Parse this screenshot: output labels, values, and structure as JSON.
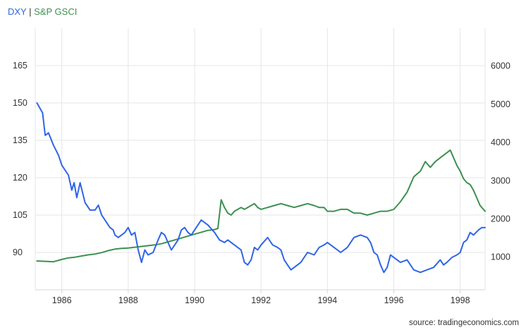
{
  "legend": {
    "separator": "|"
  },
  "source": "source: tradingeconomics.com",
  "colors": {
    "dxy": "#2f65e6",
    "gsci": "#3d9050",
    "grid": "#e6e6e6",
    "axis": "#d6d6d6",
    "text": "#333333"
  },
  "chart_data": {
    "type": "line",
    "x_axis": {
      "range": [
        1985.2,
        1998.75
      ],
      "ticks": [
        1986,
        1988,
        1990,
        1992,
        1994,
        1996,
        1998
      ],
      "tick_labels": [
        "1986",
        "1988",
        "1990",
        "1992",
        "1994",
        "1996",
        "1998"
      ],
      "grid": true
    },
    "y_left": {
      "range": [
        75,
        180
      ],
      "ticks": [
        90,
        105,
        120,
        135,
        150,
        165
      ],
      "tick_labels": [
        "90",
        "105",
        "120",
        "135",
        "150",
        "165"
      ],
      "grid": true
    },
    "y_right": {
      "range": [
        145,
        6990
      ],
      "ticks": [
        1000,
        2000,
        3000,
        4000,
        5000,
        6000
      ],
      "tick_labels": [
        "1000",
        "2000",
        "3000",
        "4000",
        "5000",
        "6000"
      ]
    },
    "legend_position": "top-left",
    "series": [
      {
        "name": "DXY",
        "axis": "left",
        "color": "#2f65e6",
        "x": [
          1985.25,
          1985.42,
          1985.5,
          1985.6,
          1985.75,
          1985.9,
          1986.0,
          1986.1,
          1986.2,
          1986.3,
          1986.37,
          1986.45,
          1986.55,
          1986.7,
          1986.85,
          1987.0,
          1987.1,
          1987.2,
          1987.35,
          1987.45,
          1987.55,
          1987.6,
          1987.7,
          1987.8,
          1987.9,
          1988.0,
          1988.1,
          1988.2,
          1988.3,
          1988.4,
          1988.5,
          1988.6,
          1988.75,
          1988.9,
          1989.0,
          1989.1,
          1989.2,
          1989.3,
          1989.4,
          1989.5,
          1989.6,
          1989.7,
          1989.8,
          1989.9,
          1990.0,
          1990.2,
          1990.4,
          1990.6,
          1990.75,
          1990.9,
          1991.0,
          1991.1,
          1991.2,
          1991.3,
          1991.4,
          1991.5,
          1991.6,
          1991.7,
          1991.8,
          1991.9,
          1992.0,
          1992.2,
          1992.35,
          1992.5,
          1992.6,
          1992.7,
          1992.8,
          1992.9,
          1993.0,
          1993.2,
          1993.4,
          1993.6,
          1993.75,
          1993.9,
          1994.0,
          1994.2,
          1994.4,
          1994.6,
          1994.8,
          1995.0,
          1995.2,
          1995.3,
          1995.4,
          1995.5,
          1995.6,
          1995.7,
          1995.8,
          1995.9,
          1996.0,
          1996.2,
          1996.4,
          1996.6,
          1996.8,
          1997.0,
          1997.2,
          1997.4,
          1997.5,
          1997.6,
          1997.75,
          1997.9,
          1998.0,
          1998.1,
          1998.2,
          1998.3,
          1998.4,
          1998.55,
          1998.65,
          1998.75
        ],
        "values": [
          150,
          146,
          137,
          138,
          133,
          129,
          125,
          123,
          121,
          115,
          118,
          112,
          118,
          110,
          107,
          107,
          109,
          105,
          102,
          100,
          99,
          97,
          96,
          97,
          98,
          100,
          97,
          98,
          91,
          86,
          91,
          89,
          90,
          95,
          98,
          97,
          94,
          91,
          93,
          95,
          99,
          100,
          98,
          97,
          99,
          103,
          101,
          98,
          95,
          94,
          95,
          94,
          93,
          92,
          91,
          86,
          85,
          87,
          92,
          91,
          93,
          96,
          93,
          92,
          91,
          87,
          85,
          83,
          84,
          86,
          90,
          89,
          92,
          93,
          94,
          92,
          90,
          92,
          96,
          97,
          96,
          94,
          90,
          89,
          85,
          82,
          84,
          89,
          88,
          86,
          87,
          83,
          82,
          83,
          84,
          87,
          85,
          86,
          88,
          89,
          90,
          94,
          95,
          98,
          97,
          99,
          100,
          100
        ]
      },
      {
        "name": "S&P GSCI",
        "axis": "right",
        "color": "#3d9050",
        "x": [
          1985.25,
          1985.5,
          1985.75,
          1986.0,
          1986.2,
          1986.4,
          1986.6,
          1986.8,
          1987.0,
          1987.2,
          1987.4,
          1987.6,
          1987.8,
          1988.0,
          1988.2,
          1988.4,
          1988.6,
          1988.8,
          1989.0,
          1989.2,
          1989.4,
          1989.6,
          1989.8,
          1990.0,
          1990.2,
          1990.4,
          1990.5,
          1990.6,
          1990.7,
          1990.8,
          1990.9,
          1991.0,
          1991.1,
          1991.2,
          1991.3,
          1991.4,
          1991.5,
          1991.6,
          1991.7,
          1991.8,
          1991.9,
          1992.0,
          1992.2,
          1992.4,
          1992.6,
          1992.8,
          1993.0,
          1993.2,
          1993.4,
          1993.6,
          1993.75,
          1993.9,
          1994.0,
          1994.2,
          1994.4,
          1994.6,
          1994.8,
          1995.0,
          1995.2,
          1995.4,
          1995.6,
          1995.8,
          1996.0,
          1996.2,
          1996.4,
          1996.5,
          1996.6,
          1996.8,
          1996.95,
          1997.1,
          1997.25,
          1997.4,
          1997.55,
          1997.7,
          1997.8,
          1997.9,
          1998.0,
          1998.1,
          1998.2,
          1998.3,
          1998.4,
          1998.5,
          1998.6,
          1998.7,
          1998.75
        ],
        "values": [
          900,
          890,
          880,
          940,
          980,
          1000,
          1030,
          1060,
          1080,
          1120,
          1170,
          1210,
          1230,
          1240,
          1260,
          1280,
          1300,
          1320,
          1350,
          1400,
          1450,
          1500,
          1550,
          1600,
          1650,
          1700,
          1710,
          1720,
          1750,
          2500,
          2300,
          2150,
          2100,
          2200,
          2250,
          2300,
          2250,
          2300,
          2350,
          2400,
          2300,
          2250,
          2300,
          2350,
          2400,
          2350,
          2300,
          2350,
          2400,
          2350,
          2300,
          2300,
          2200,
          2200,
          2250,
          2250,
          2150,
          2150,
          2100,
          2150,
          2200,
          2200,
          2250,
          2450,
          2700,
          2900,
          3100,
          3250,
          3500,
          3350,
          3500,
          3600,
          3700,
          3800,
          3600,
          3400,
          3250,
          3050,
          2950,
          2900,
          2750,
          2550,
          2350,
          2250,
          2200
        ]
      }
    ]
  }
}
